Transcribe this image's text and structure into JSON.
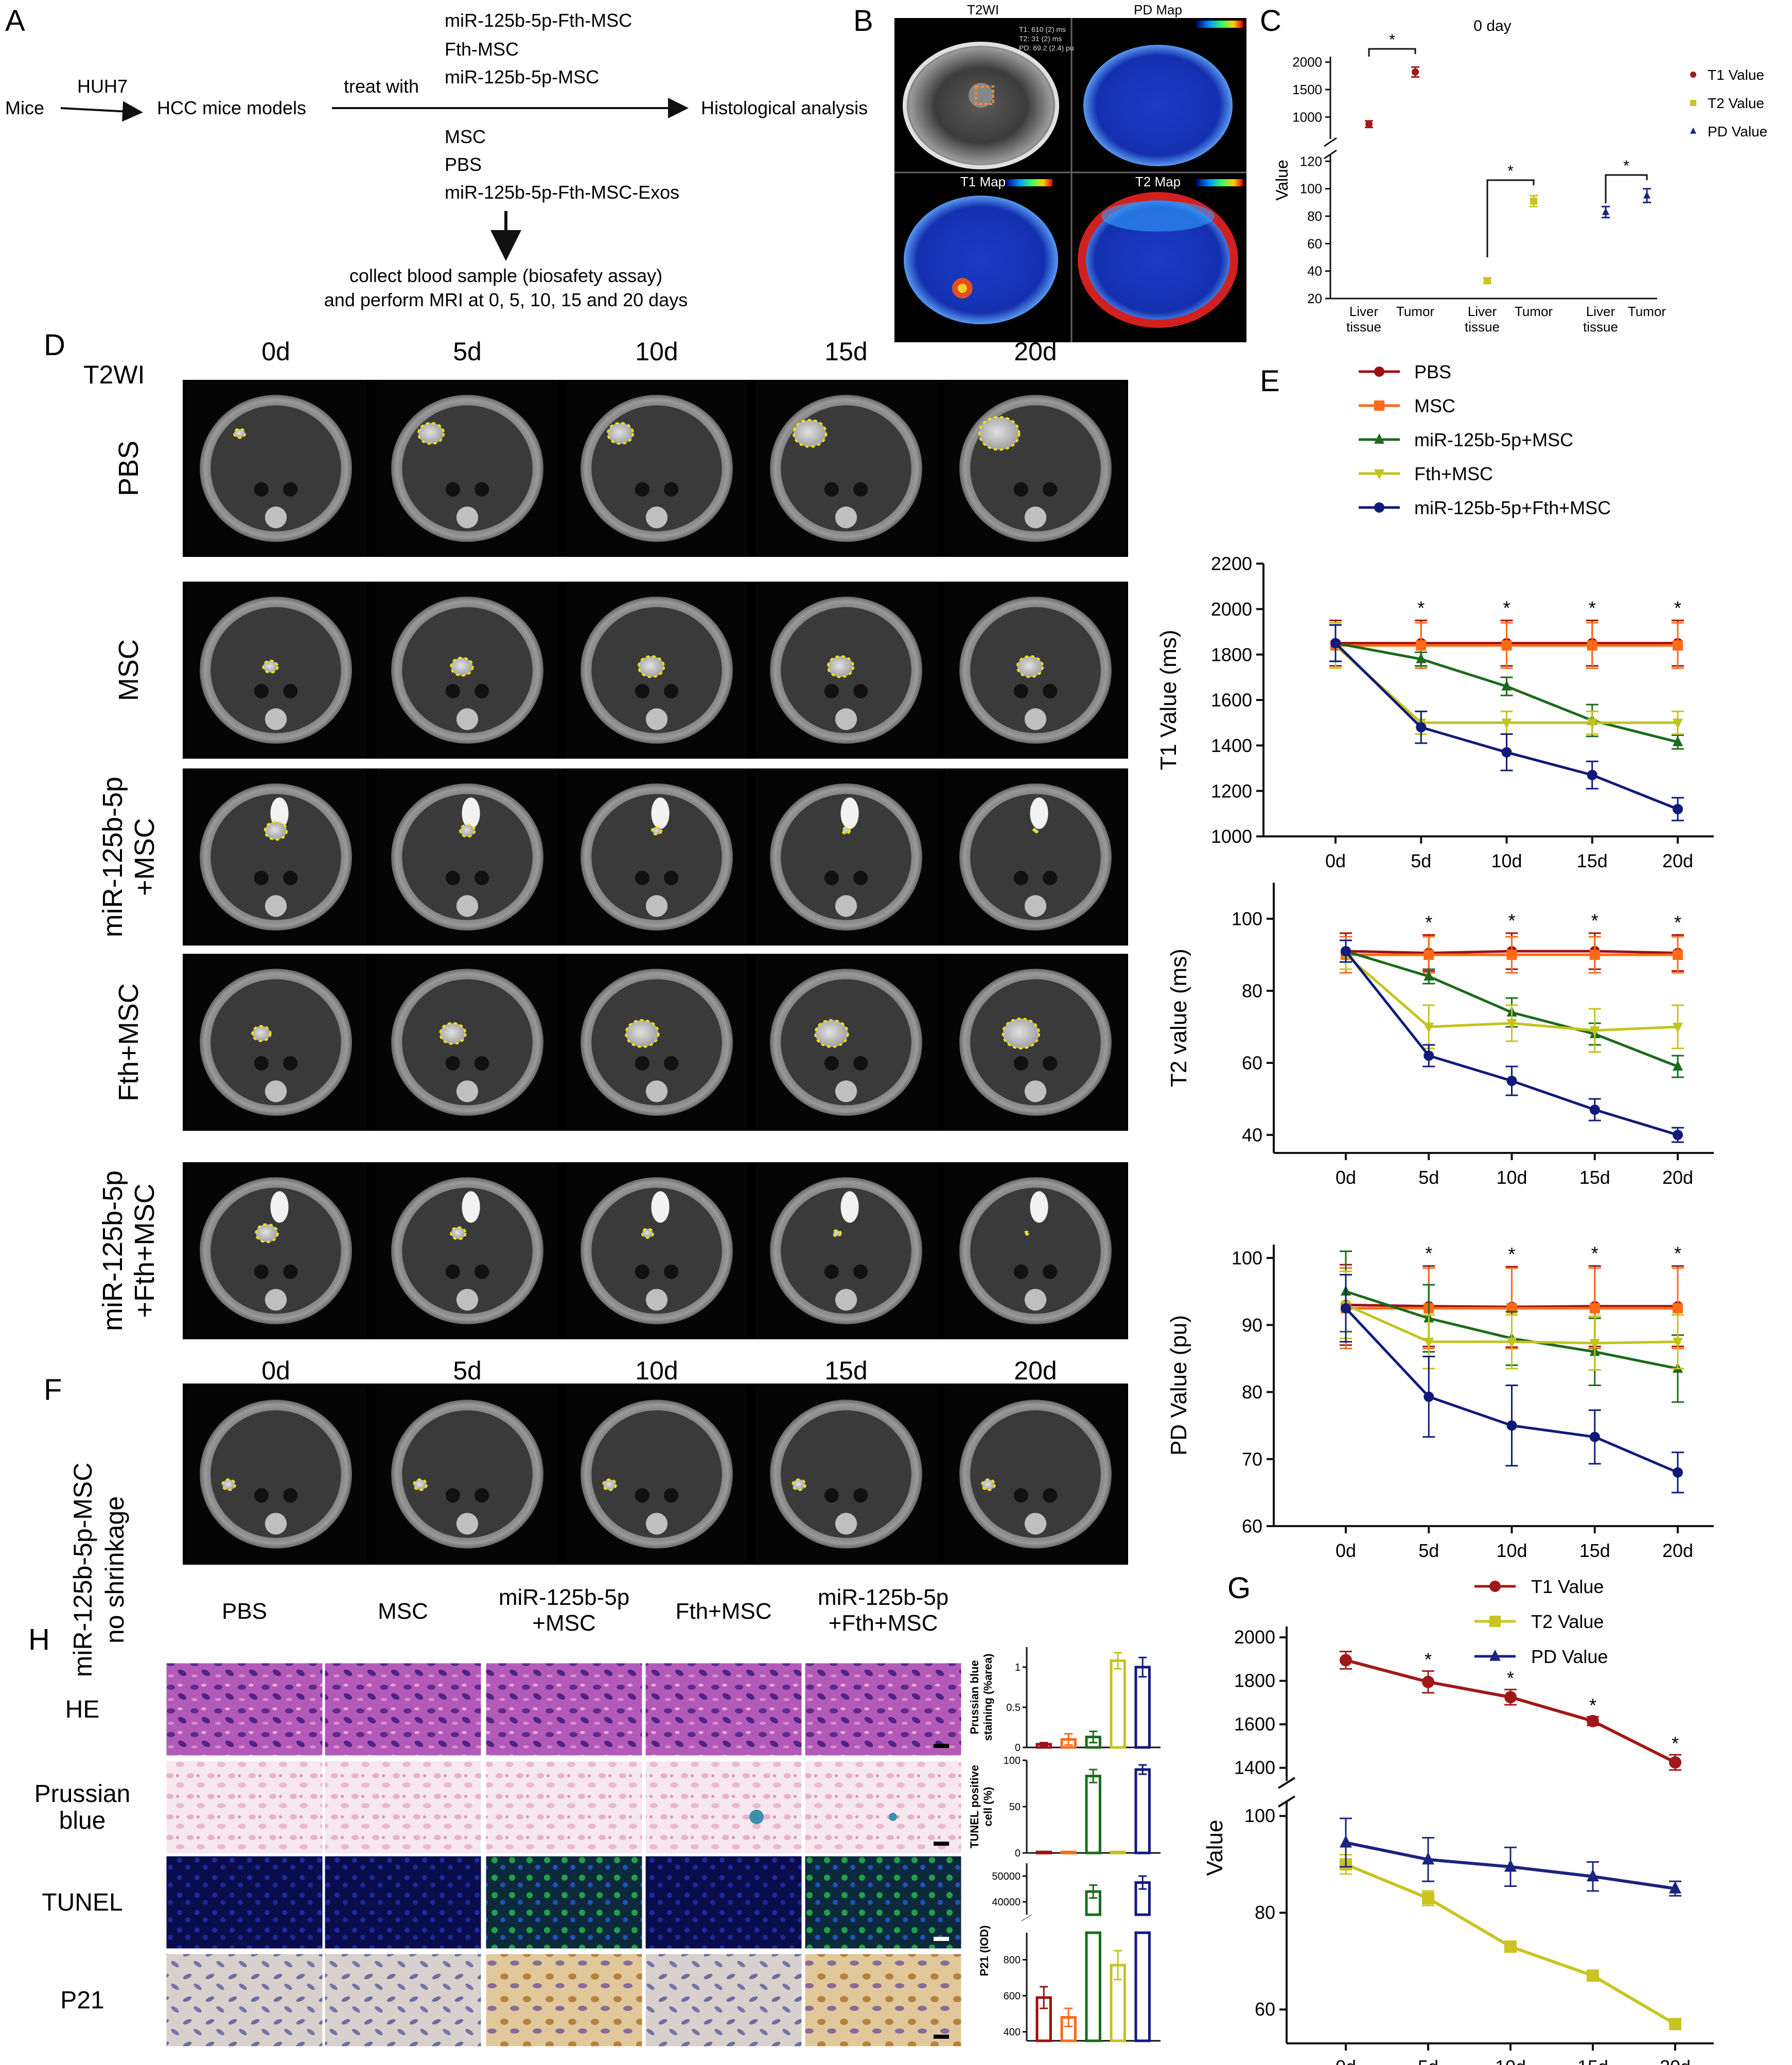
{
  "panel_letters": {
    "a": "A",
    "b": "B",
    "c": "C",
    "d": "D",
    "e": "E",
    "f": "F",
    "g": "G",
    "h": "H"
  },
  "panel_a": {
    "mice": "Mice",
    "huh7": "HUH7",
    "models": "HCC mice models",
    "treat": "treat with",
    "groups_top": [
      "miR-125b-5p-Fth-MSC",
      "Fth-MSC",
      "miR-125b-5p-MSC"
    ],
    "groups_bottom": [
      "MSC",
      "PBS",
      "miR-125b-5p-Fth-MSC-Exos"
    ],
    "outcome": "Histological analysis",
    "collect_line1": "collect blood sample (biosafety assay)",
    "collect_line2": "and perform MRI at 0, 5, 10, 15 and 20 days"
  },
  "panel_b": {
    "titles": [
      "T2WI",
      "PD Map",
      "T1 Map",
      "T2 Map"
    ],
    "readout": [
      "T1: 610 (2) ms",
      "T2: 31 (2) ms",
      "PD: 69.2 (2.4) pu"
    ]
  },
  "panel_d": {
    "header": "T2WI",
    "timepoints": [
      "0d",
      "5d",
      "10d",
      "15d",
      "20d"
    ],
    "rows": [
      [
        "PBS"
      ],
      [
        "MSC"
      ],
      [
        "miR-125b-5p",
        "+MSC"
      ],
      [
        "Fth+MSC"
      ],
      [
        "miR-125b-5p",
        "+Fth+MSC"
      ]
    ]
  },
  "panel_f": {
    "timepoints": [
      "0d",
      "5d",
      "10d",
      "15d",
      "20d"
    ],
    "label": [
      "miR-125b-5p-MSC",
      "no shrinkage"
    ]
  },
  "panel_h": {
    "cols": [
      [
        "PBS"
      ],
      [
        "MSC"
      ],
      [
        "miR-125b-5p",
        "+MSC"
      ],
      [
        "Fth+MSC"
      ],
      [
        "miR-125b-5p",
        "+Fth+MSC"
      ]
    ],
    "rows": [
      [
        "HE"
      ],
      [
        "Prussian",
        "blue"
      ],
      [
        "TUNEL"
      ],
      [
        "P21"
      ]
    ]
  },
  "colors": {
    "PBS": "#9b1111",
    "MSC": "#ff6a18",
    "miR": "#1b6a1b",
    "Fth": "#c3c31e",
    "Combo": "#0f1a7a",
    "T1": "#a01818",
    "T2": "#c9c422",
    "PD": "#1a237e"
  },
  "chart_data": [
    {
      "id": "C",
      "type": "scatter",
      "title": "0 day",
      "ylabel": "Value",
      "axis_break": true,
      "categories": [
        "Liver tissue",
        "Tumor",
        "Liver tissue",
        "Tumor",
        "Liver tissue",
        "Tumor"
      ],
      "series": [
        {
          "name": "T1 Value",
          "points": [
            {
              "x": "Liver tissue",
              "y": 870,
              "err": 60
            },
            {
              "x": "Tumor",
              "y": 1820,
              "err": 90
            }
          ]
        },
        {
          "name": "T2 Value",
          "points": [
            {
              "x": "Liver tissue",
              "y": 33,
              "err": 2
            },
            {
              "x": "Tumor",
              "y": 91,
              "err": 4
            }
          ]
        },
        {
          "name": "PD Value",
          "points": [
            {
              "x": "Liver tissue",
              "y": 83,
              "err": 4
            },
            {
              "x": "Tumor",
              "y": 95,
              "err": 5
            }
          ]
        }
      ],
      "yticks_upper": [
        1000,
        1500,
        2000
      ],
      "yticks_lower": [
        20,
        40,
        60,
        80,
        100,
        120
      ],
      "significance": [
        "*",
        "*",
        "*"
      ]
    },
    {
      "id": "E1",
      "type": "line",
      "ylabel": "T1 Value (ms)",
      "x": [
        "0d",
        "5d",
        "10d",
        "15d",
        "20d"
      ],
      "ylim": [
        1000,
        2200
      ],
      "yticks": [
        1000,
        1200,
        1400,
        1600,
        1800,
        2000,
        2200
      ],
      "series": [
        {
          "name": "PBS",
          "values": [
            1850,
            1850,
            1850,
            1850,
            1850
          ],
          "err": [
            100,
            100,
            100,
            100,
            100
          ]
        },
        {
          "name": "MSC",
          "values": [
            1840,
            1840,
            1840,
            1840,
            1840
          ],
          "err": [
            100,
            100,
            100,
            100,
            100
          ]
        },
        {
          "name": "miR-125b-5p+MSC",
          "values": [
            1850,
            1780,
            1660,
            1510,
            1415
          ],
          "err": [
            80,
            30,
            40,
            70,
            30
          ]
        },
        {
          "name": "Fth+MSC",
          "values": [
            1840,
            1500,
            1500,
            1500,
            1500
          ],
          "err": [
            100,
            50,
            50,
            50,
            50
          ]
        },
        {
          "name": "miR-125b-5p+Fth+MSC",
          "values": [
            1850,
            1480,
            1370,
            1270,
            1120
          ],
          "err": [
            80,
            70,
            80,
            60,
            50
          ]
        }
      ],
      "significance": [
        "",
        "*",
        "*",
        "*",
        "*"
      ]
    },
    {
      "id": "E2",
      "type": "line",
      "ylabel": "T2 value (ms)",
      "x": [
        "0d",
        "5d",
        "10d",
        "15d",
        "20d"
      ],
      "ylim": [
        35,
        110
      ],
      "yticks": [
        40,
        60,
        80,
        100
      ],
      "series": [
        {
          "name": "PBS",
          "values": [
            91,
            90.5,
            91,
            91,
            90.5
          ],
          "err": [
            5,
            5,
            5,
            5,
            5
          ]
        },
        {
          "name": "MSC",
          "values": [
            90,
            90,
            90,
            90,
            90
          ],
          "err": [
            5,
            5,
            5,
            5,
            5
          ]
        },
        {
          "name": "miR-125b-5p+MSC",
          "values": [
            91,
            84,
            74,
            68,
            59
          ],
          "err": [
            3,
            2,
            4,
            3,
            3
          ]
        },
        {
          "name": "Fth+MSC",
          "values": [
            90,
            70,
            71,
            69,
            70
          ],
          "err": [
            4,
            6,
            5,
            6,
            6
          ]
        },
        {
          "name": "miR-125b-5p+Fth+MSC",
          "values": [
            91,
            62,
            55,
            47,
            40
          ],
          "err": [
            3,
            3,
            4,
            3,
            2
          ]
        }
      ],
      "significance": [
        "",
        "*",
        "*",
        "*",
        "*"
      ]
    },
    {
      "id": "E3",
      "type": "line",
      "ylabel": "PD Value (pu)",
      "x": [
        "0d",
        "5d",
        "10d",
        "15d",
        "20d"
      ],
      "ylim": [
        60,
        102
      ],
      "yticks": [
        60,
        70,
        80,
        90,
        100
      ],
      "series": [
        {
          "name": "PBS",
          "values": [
            93,
            92.8,
            92.7,
            92.8,
            92.8
          ],
          "err": [
            6,
            6,
            6,
            6,
            6
          ]
        },
        {
          "name": "MSC",
          "values": [
            92.5,
            92.5,
            92.5,
            92.5,
            92.5
          ],
          "err": [
            6,
            6,
            6,
            6,
            6
          ]
        },
        {
          "name": "miR-125b-5p+MSC",
          "values": [
            95,
            91,
            88,
            86,
            83.5
          ],
          "err": [
            6,
            5,
            4,
            5,
            5
          ]
        },
        {
          "name": "Fth+MSC",
          "values": [
            93,
            87.5,
            87.5,
            87.3,
            87.5
          ],
          "err": [
            5,
            4,
            4,
            4,
            4
          ]
        },
        {
          "name": "miR-125b-5p+Fth+MSC",
          "values": [
            92.5,
            79.3,
            75,
            73.3,
            68
          ],
          "err": [
            5,
            6,
            6,
            4,
            3
          ]
        }
      ],
      "significance": [
        "",
        "*",
        "*",
        "*",
        "*"
      ]
    },
    {
      "id": "G",
      "type": "line",
      "ylabel": "Value",
      "x": [
        "0d",
        "5d",
        "10d",
        "15d",
        "20d"
      ],
      "axis_break": true,
      "yticks_upper": [
        1400,
        1600,
        1800,
        2000
      ],
      "yticks_lower": [
        60,
        80,
        100
      ],
      "series": [
        {
          "name": "T1 Value",
          "values": [
            1895,
            1795,
            1725,
            1615,
            1425
          ],
          "err": [
            40,
            50,
            35,
            20,
            35
          ]
        },
        {
          "name": "T2 Value",
          "values": [
            90,
            83,
            73,
            67,
            57
          ],
          "err": [
            2,
            1.5,
            1,
            1,
            1
          ]
        },
        {
          "name": "PD Value",
          "values": [
            94.5,
            91,
            89.5,
            87.5,
            85
          ],
          "err": [
            5,
            4.5,
            4,
            3,
            1.5
          ]
        }
      ],
      "significance": [
        "",
        "*",
        "*",
        "*",
        "*"
      ]
    },
    {
      "id": "H1",
      "type": "bar",
      "ylabel": "Prussian blue staining (%area)",
      "ylim": [
        0,
        1.25
      ],
      "yticks": [
        0,
        0.5,
        1.0
      ],
      "categories": [
        "PBS",
        "MSC",
        "miR-125b-5p+MSC",
        "Fth+MSC",
        "miR-125b-5p+Fth+MSC"
      ],
      "values": [
        0.04,
        0.1,
        0.13,
        1.08,
        1.0
      ],
      "err": [
        0.02,
        0.07,
        0.07,
        0.1,
        0.12
      ]
    },
    {
      "id": "H2",
      "type": "bar",
      "ylabel": "TUNEL positive cell (%)",
      "ylim": [
        0,
        100
      ],
      "yticks": [
        0,
        50,
        100
      ],
      "categories": [
        "PBS",
        "MSC",
        "miR-125b-5p+MSC",
        "Fth+MSC",
        "miR-125b-5p+Fth+MSC"
      ],
      "values": [
        1,
        1,
        83,
        1,
        90
      ],
      "err": [
        0.5,
        0.5,
        7,
        0.5,
        5
      ]
    },
    {
      "id": "H3",
      "type": "bar",
      "ylabel": "P21 (IOD)",
      "axis_break": true,
      "yticks_upper": [
        40000,
        50000
      ],
      "yticks_lower": [
        400,
        600,
        800
      ],
      "categories": [
        "PBS",
        "MSC",
        "miR-125b-5p+MSC",
        "Fth+MSC",
        "miR-125b-5p+Fth+MSC"
      ],
      "values": [
        590,
        480,
        44000,
        770,
        47500
      ],
      "err": [
        60,
        50,
        2500,
        80,
        2500
      ]
    }
  ]
}
